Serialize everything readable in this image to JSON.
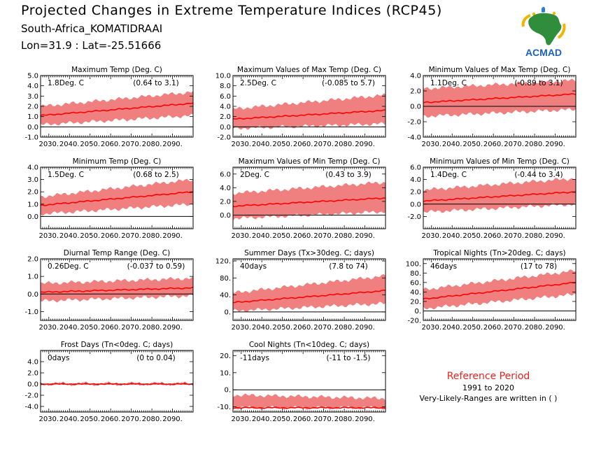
{
  "header": {
    "title": "Projected Changes in Extreme Temperature Indices (RCP45)",
    "location": "South-Africa_KOMATIDRAAI",
    "coords": "Lon=31.9 : Lat=-25.51666"
  },
  "logo": {
    "text": "ACMAD",
    "icon": "africa-map-logo"
  },
  "reference": {
    "title": "Reference Period",
    "years": "1991 to 2020",
    "note": "Very-Likely-Ranges are written in ( )"
  },
  "colors": {
    "median_line": "#ff0000",
    "range_band": "#f08080",
    "reference_text": "#e8231f"
  },
  "x_tick_labels": [
    "2030.",
    "2040.",
    "2050.",
    "2060.",
    "2070.",
    "2080.",
    "2090."
  ],
  "chart_data": [
    {
      "type": "area",
      "title": "Maximum Temp (Deg. C)",
      "change": "1.8Deg. C",
      "range": "(0.64 to 3.1)",
      "xlim": [
        2026,
        2100
      ],
      "ylim": [
        -1,
        5
      ],
      "yticks": [
        "-1.0",
        "0.0",
        "1.0",
        "2.0",
        "3.0",
        "4.0",
        "5.0"
      ],
      "x": [
        2026,
        2100
      ],
      "median": [
        1.1,
        2.3
      ],
      "lower": [
        0.2,
        1.1
      ],
      "upper": [
        2.0,
        3.4
      ]
    },
    {
      "type": "area",
      "title": "Maximum Values of Max Temp (Deg. C)",
      "change": "2.5Deg. C",
      "range": "(-0.085 to 5.7)",
      "xlim": [
        2026,
        2100
      ],
      "ylim": [
        -2,
        10
      ],
      "yticks": [
        "-2.0",
        "0.0",
        "2.0",
        "4.0",
        "6.0",
        "8.0",
        "10.0"
      ],
      "x": [
        2026,
        2100
      ],
      "median": [
        1.5,
        3.2
      ],
      "lower": [
        -0.3,
        0.6
      ],
      "upper": [
        3.5,
        6.2
      ]
    },
    {
      "type": "area",
      "title": "Minimum Values of Max Temp (Deg. C)",
      "change": "1.1Deg. C",
      "range": "(-0.89 to 3.1)",
      "xlim": [
        2026,
        2100
      ],
      "ylim": [
        -4,
        4
      ],
      "yticks": [
        "-4.0",
        "-2.0",
        "0.0",
        "2.0",
        "4.0"
      ],
      "x": [
        2026,
        2100
      ],
      "median": [
        0.5,
        1.6
      ],
      "lower": [
        -1.3,
        -0.4
      ],
      "upper": [
        2.3,
        3.4
      ]
    },
    {
      "type": "area",
      "title": "Minimum Temp (Deg. C)",
      "change": "1.5Deg. C",
      "range": "(0.68 to 2.5)",
      "xlim": [
        2026,
        2100
      ],
      "ylim": [
        -1,
        4
      ],
      "yticks": [
        "0.0",
        "1.0",
        "2.0",
        "3.0",
        "4.0"
      ],
      "x": [
        2026,
        2100
      ],
      "median": [
        0.9,
        2.0
      ],
      "lower": [
        0.2,
        1.0
      ],
      "upper": [
        1.6,
        3.0
      ]
    },
    {
      "type": "area",
      "title": "Maximum Values of Min Temp (Deg. C)",
      "change": "2Deg. C",
      "range": "(0.43 to 3.9)",
      "xlim": [
        2026,
        2100
      ],
      "ylim": [
        -2,
        7
      ],
      "yticks": [
        "0.0",
        "2.0",
        "4.0",
        "6.0"
      ],
      "x": [
        2026,
        2100
      ],
      "median": [
        1.3,
        2.5
      ],
      "lower": [
        -0.5,
        0.5
      ],
      "upper": [
        3.2,
        4.8
      ]
    },
    {
      "type": "area",
      "title": "Minimum Values of Min Temp (Deg. C)",
      "change": "1.4Deg. C",
      "range": "(-0.44 to 3.4)",
      "xlim": [
        2026,
        2100
      ],
      "ylim": [
        -4,
        6
      ],
      "yticks": [
        "-2.0",
        "0.0",
        "2.0",
        "4.0",
        "6.0"
      ],
      "x": [
        2026,
        2100
      ],
      "median": [
        0.5,
        2.0
      ],
      "lower": [
        -1.3,
        0.0
      ],
      "upper": [
        2.3,
        4.2
      ]
    },
    {
      "type": "area",
      "title": "Diurnal Temp Range (Deg. C)",
      "change": "0.26Deg. C",
      "range": "(-0.037 to 0.59)",
      "xlim": [
        2026,
        2100
      ],
      "ylim": [
        -1.5,
        2
      ],
      "yticks": [
        "-1.0",
        "0.0",
        "1.0",
        "2.0"
      ],
      "x": [
        2026,
        2100
      ],
      "median": [
        0.1,
        0.35
      ],
      "lower": [
        -0.4,
        -0.1
      ],
      "upper": [
        0.6,
        0.9
      ]
    },
    {
      "type": "area",
      "title": "Summer Days (Tx>30deg. C; days)",
      "change": "40days",
      "range": "(7.8 to 74)",
      "xlim": [
        2026,
        2100
      ],
      "ylim": [
        -20,
        125
      ],
      "yticks": [
        "0.",
        "40.",
        "80.",
        "120."
      ],
      "x": [
        2026,
        2100
      ],
      "median": [
        22,
        50
      ],
      "lower": [
        2,
        20
      ],
      "upper": [
        45,
        85
      ]
    },
    {
      "type": "area",
      "title": "Tropical Nights (Tn>20deg. C; days)",
      "change": "46days",
      "range": "(17 to 78)",
      "xlim": [
        2026,
        2100
      ],
      "ylim": [
        -20,
        110
      ],
      "yticks": [
        "-20.",
        "0.",
        "20.",
        "40.",
        "60.",
        "80.",
        "100."
      ],
      "x": [
        2026,
        2100
      ],
      "median": [
        25,
        60
      ],
      "lower": [
        5,
        35
      ],
      "upper": [
        45,
        85
      ]
    },
    {
      "type": "area",
      "title": "Frost Days (Tn<0deg. C; days)",
      "change": "0days",
      "range": "(0 to 0.04)",
      "xlim": [
        2026,
        2100
      ],
      "ylim": [
        -5,
        6
      ],
      "yticks": [
        "-4.0",
        "-2.0",
        "0.0",
        "2.0",
        "4.0"
      ],
      "x": [
        2026,
        2100
      ],
      "median": [
        0.0,
        0.0
      ],
      "lower": [
        0.0,
        0.0
      ],
      "upper": [
        0.1,
        0.1
      ]
    },
    {
      "type": "area",
      "title": "Cool Nights (Tn<10deg. C; days)",
      "change": "-11days",
      "range": "(-11 to -1.5)",
      "xlim": [
        2026,
        2100
      ],
      "ylim": [
        -13,
        23
      ],
      "yticks": [
        "-10.",
        "0.",
        "10.",
        "20."
      ],
      "x": [
        2026,
        2100
      ],
      "median": [
        -10.5,
        -10.5
      ],
      "lower": [
        -10.5,
        -10.5
      ],
      "upper": [
        -3,
        -5
      ]
    }
  ]
}
